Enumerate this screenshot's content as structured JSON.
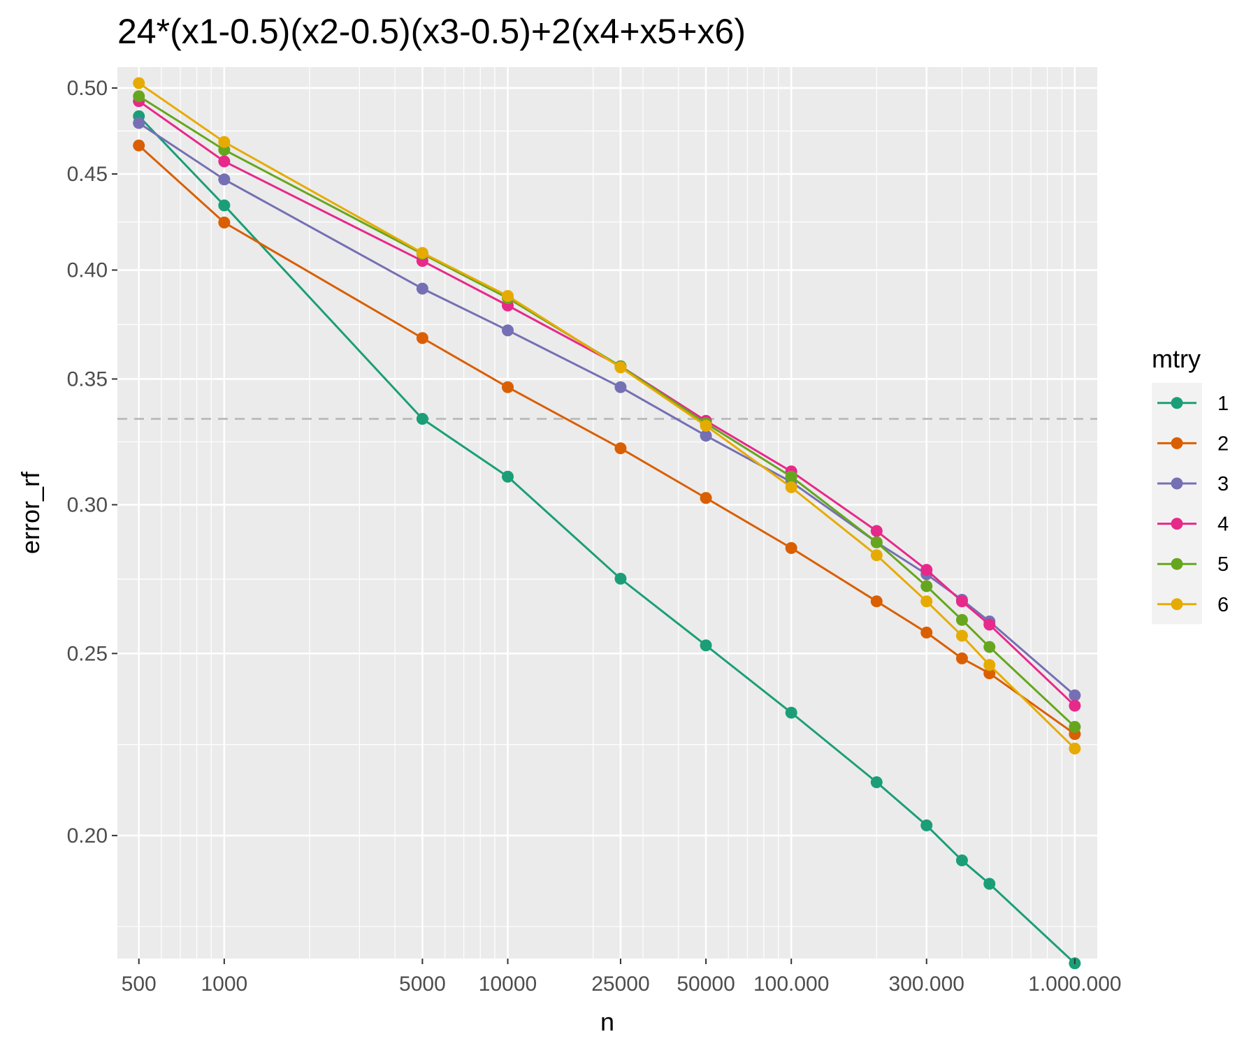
{
  "chart_data": {
    "type": "line",
    "title": "24*(x1-0.5)(x2-0.5)(x3-0.5)+2(x4+x5+x6)",
    "xlabel": "n",
    "ylabel": "error_rf",
    "x_scale": "log10",
    "y_scale": "log10",
    "xlim": [
      420,
      1200000
    ],
    "ylim": [
      0.172,
      0.513
    ],
    "x": [
      500,
      1000,
      5000,
      10000,
      25000,
      50000,
      100000,
      200000,
      300000,
      400000,
      500000,
      1000000
    ],
    "x_ticks": [
      {
        "value": 500,
        "label": "500"
      },
      {
        "value": 1000,
        "label": "1000"
      },
      {
        "value": 5000,
        "label": "5000"
      },
      {
        "value": 10000,
        "label": "10000"
      },
      {
        "value": 25000,
        "label": "25000"
      },
      {
        "value": 50000,
        "label": "50000"
      },
      {
        "value": 100000,
        "label": "100.000"
      },
      {
        "value": 300000,
        "label": "300.000"
      },
      {
        "value": 1000000,
        "label": "1.000.000"
      }
    ],
    "y_ticks": [
      {
        "value": 0.2,
        "label": "0.20"
      },
      {
        "value": 0.25,
        "label": "0.25"
      },
      {
        "value": 0.3,
        "label": "0.30"
      },
      {
        "value": 0.35,
        "label": "0.35"
      },
      {
        "value": 0.4,
        "label": "0.40"
      },
      {
        "value": 0.45,
        "label": "0.45"
      },
      {
        "value": 0.5,
        "label": "0.50"
      }
    ],
    "reference_line": {
      "y": 0.3333,
      "style": "dashed"
    },
    "legend": {
      "title": "mtry",
      "position": "right"
    },
    "series": [
      {
        "name": "1",
        "color": "#1b9e77",
        "values": [
          0.483,
          0.433,
          0.3333,
          0.3105,
          0.274,
          0.2525,
          0.2325,
          0.2135,
          0.2025,
          0.194,
          0.1885,
          0.171
        ]
      },
      {
        "name": "2",
        "color": "#d95f02",
        "values": [
          0.466,
          0.424,
          0.368,
          0.3465,
          0.3215,
          0.3025,
          0.2845,
          0.2665,
          0.2565,
          0.2485,
          0.244,
          0.2265
        ]
      },
      {
        "name": "3",
        "color": "#7570b3",
        "values": [
          0.479,
          0.447,
          0.391,
          0.3715,
          0.3465,
          0.3265,
          0.3085,
          0.2865,
          0.2755,
          0.267,
          0.26,
          0.2375
        ]
      },
      {
        "name": "4",
        "color": "#e7298a",
        "values": [
          0.492,
          0.457,
          0.4045,
          0.383,
          0.3555,
          0.3325,
          0.3125,
          0.2905,
          0.277,
          0.2665,
          0.259,
          0.2345
        ]
      },
      {
        "name": "5",
        "color": "#66a61e",
        "values": [
          0.495,
          0.4635,
          0.408,
          0.3865,
          0.3555,
          0.3315,
          0.3105,
          0.2865,
          0.2715,
          0.2605,
          0.252,
          0.2285
        ]
      },
      {
        "name": "6",
        "color": "#e6ab02",
        "values": [
          0.503,
          0.468,
          0.4085,
          0.3875,
          0.355,
          0.3305,
          0.3065,
          0.282,
          0.2665,
          0.2555,
          0.2465,
          0.2225
        ]
      }
    ]
  }
}
